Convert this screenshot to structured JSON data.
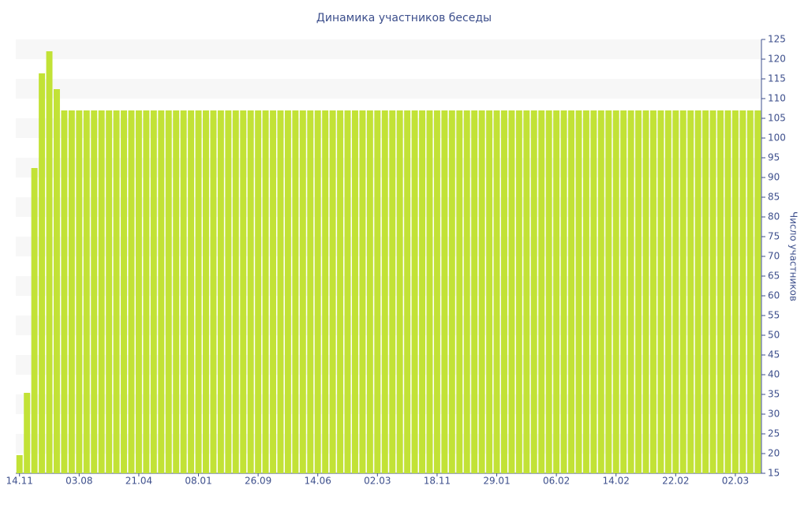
{
  "chart_data": {
    "type": "bar",
    "title": "Динамика участников беседы",
    "y_label": "Число участников",
    "categories": [
      "14.11",
      null,
      null,
      null,
      null,
      null,
      null,
      null,
      "03.08",
      null,
      null,
      null,
      null,
      null,
      null,
      null,
      "21.04",
      null,
      null,
      null,
      null,
      null,
      null,
      null,
      "08.01",
      null,
      null,
      null,
      null,
      null,
      null,
      null,
      "26.09",
      null,
      null,
      null,
      null,
      null,
      null,
      null,
      "14.06",
      null,
      null,
      null,
      null,
      null,
      null,
      null,
      "02.03",
      null,
      null,
      null,
      null,
      null,
      null,
      null,
      "18.11",
      null,
      null,
      null,
      null,
      null,
      null,
      null,
      "29.01",
      null,
      null,
      null,
      null,
      null,
      null,
      null,
      "06.02",
      null,
      null,
      null,
      null,
      null,
      null,
      null,
      "14.02",
      null,
      null,
      null,
      null,
      null,
      null,
      null,
      "22.02",
      null,
      null,
      null,
      null,
      null,
      null,
      null,
      "02.03",
      null,
      null,
      null
    ],
    "values": [
      19.6,
      35.4,
      92.4,
      116.4,
      122,
      112.4,
      107,
      107,
      107,
      107,
      107,
      107,
      107,
      107,
      107,
      107,
      107,
      107,
      107,
      107,
      107,
      107,
      107,
      107,
      107,
      107,
      107,
      107,
      107,
      107,
      107,
      107,
      107,
      107,
      107,
      107,
      107,
      107,
      107,
      107,
      107,
      107,
      107,
      107,
      107,
      107,
      107,
      107,
      107,
      107,
      107,
      107,
      107,
      107,
      107,
      107,
      107,
      107,
      107,
      107,
      107,
      107,
      107,
      107,
      107,
      107,
      107,
      107,
      107,
      107,
      107,
      107,
      107,
      107,
      107,
      107,
      107,
      107,
      107,
      107,
      107,
      107,
      107,
      107,
      107,
      107,
      107,
      107,
      107,
      107,
      107,
      107,
      107,
      107,
      107,
      107,
      107,
      107,
      107,
      107
    ],
    "color": "#c2e236",
    "ylim": [
      15,
      125
    ],
    "yticks": [
      15,
      20,
      25,
      30,
      35,
      40,
      45,
      50,
      55,
      60,
      65,
      70,
      75,
      80,
      85,
      90,
      95,
      100,
      105,
      110,
      115,
      120,
      125
    ],
    "grid": "bands"
  }
}
